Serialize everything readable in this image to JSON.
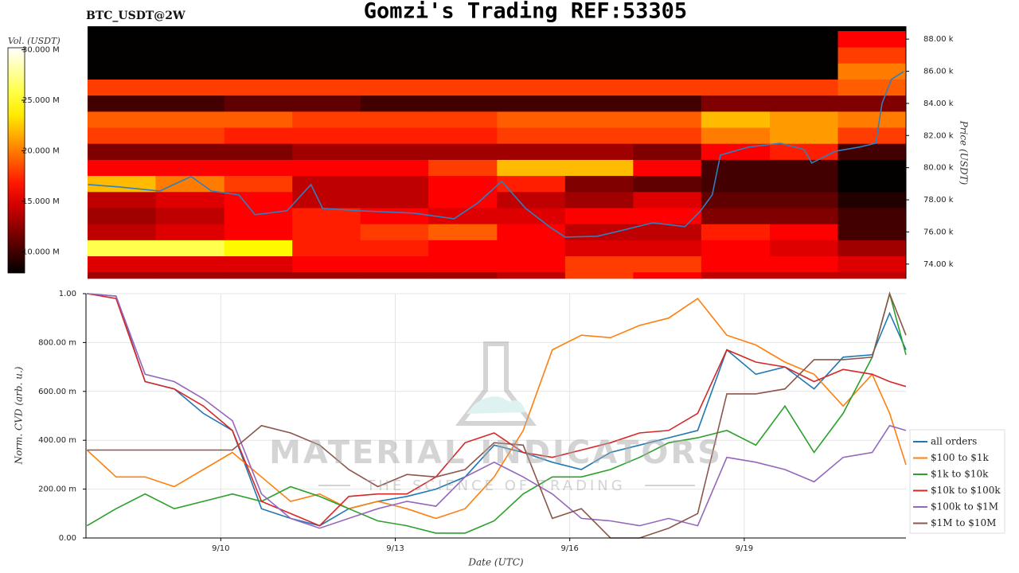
{
  "chart_data": [
    {
      "type": "heatmap",
      "title": "Gomzi's Trading REF:53305",
      "subtitle": "BTC_USDT@2W",
      "y_label": "Price (USDT)",
      "colorbar_label": "Vol. (USDT)",
      "colormap": "hot",
      "xlim": [
        7.71,
        21.78
      ],
      "ylim": [
        73.1,
        88.8
      ],
      "yticks": [
        {
          "value": 74,
          "label": "74.00 k"
        },
        {
          "value": 76,
          "label": "76.00 k"
        },
        {
          "value": 78,
          "label": "78.00 k"
        },
        {
          "value": 80,
          "label": "80.00 k"
        },
        {
          "value": 82,
          "label": "82.00 k"
        },
        {
          "value": 84,
          "label": "84.00 k"
        },
        {
          "value": 86,
          "label": "86.00 k"
        },
        {
          "value": 88,
          "label": "88.00 k"
        }
      ],
      "vlim": [
        7.9,
        30.2
      ],
      "vticks": [
        {
          "value": 10,
          "label": "10.000 M"
        },
        {
          "value": 15,
          "label": "15.000 M"
        },
        {
          "value": 20,
          "label": "20.000 M"
        },
        {
          "value": 25,
          "label": "25.000 M"
        },
        {
          "value": 30,
          "label": "30.000 M"
        }
      ],
      "time_bins": [
        7.71,
        8.88,
        10.06,
        11.23,
        12.4,
        13.57,
        14.75,
        15.92,
        17.09,
        18.26,
        19.44,
        20.61,
        21.78
      ],
      "price_bins": [
        72.5,
        73.5,
        74.5,
        75.5,
        76.5,
        77.5,
        78.5,
        79.5,
        80.5,
        81.5,
        82.5,
        83.5,
        84.5,
        85.5,
        86.5,
        87.5,
        88.5
      ],
      "z": [
        [
          13,
          13,
          13,
          13,
          13,
          13,
          14,
          18,
          16,
          14,
          14,
          14
        ],
        [
          15,
          15,
          15,
          16,
          16,
          16,
          16,
          18,
          18,
          16,
          16,
          15
        ],
        [
          26,
          26,
          24,
          17,
          17,
          16,
          16,
          15,
          15,
          16,
          15,
          13
        ],
        [
          14,
          15,
          16,
          17,
          18,
          19,
          16,
          14,
          14,
          17,
          16,
          10
        ],
        [
          13,
          14,
          16,
          17,
          16,
          15,
          15,
          16,
          16,
          12,
          12,
          10
        ],
        [
          14,
          15,
          16,
          14,
          14,
          16,
          14,
          13,
          15,
          11,
          11,
          9
        ],
        [
          22,
          20,
          18,
          14,
          14,
          16,
          17,
          12,
          11,
          10,
          10,
          8
        ],
        [
          16,
          16,
          16,
          16,
          16,
          18,
          22,
          22,
          16,
          10,
          10,
          8
        ],
        [
          12,
          12,
          12,
          13,
          13,
          13,
          13,
          13,
          12,
          16,
          17,
          10
        ],
        [
          18,
          18,
          17,
          17,
          17,
          17,
          18,
          18,
          18,
          20,
          21,
          18
        ],
        [
          19,
          19,
          19,
          18,
          18,
          18,
          19,
          19,
          19,
          22,
          21,
          20
        ],
        [
          10,
          10,
          11,
          11,
          10,
          10,
          10,
          10,
          10,
          12,
          12,
          12
        ],
        [
          18,
          18,
          18,
          18,
          18,
          18,
          18,
          18,
          18,
          18,
          18,
          19
        ],
        [
          8,
          8,
          8,
          8,
          8,
          8,
          8,
          8,
          8,
          8,
          8,
          20
        ],
        [
          8,
          8,
          8,
          8,
          8,
          8,
          8,
          8,
          8,
          8,
          8,
          18
        ],
        [
          8,
          8,
          8,
          8,
          8,
          8,
          8,
          8,
          8,
          8,
          8,
          16
        ]
      ],
      "line_color": "#2f7fc1",
      "x": [
        7.72,
        8.26,
        8.95,
        9.49,
        9.84,
        10.31,
        10.59,
        11.14,
        11.55,
        11.75,
        12.37,
        13.32,
        14.01,
        14.42,
        14.83,
        15.24,
        15.65,
        15.92,
        16.47,
        16.88,
        17.43,
        17.98,
        18.25,
        18.45,
        18.59,
        19.07,
        19.62,
        20.03,
        20.16,
        20.57,
        20.98,
        21.26,
        21.37,
        21.53,
        21.74
      ],
      "values": [
        78.95,
        78.8,
        78.55,
        79.45,
        78.55,
        78.31,
        77.07,
        77.32,
        78.95,
        77.47,
        77.32,
        77.17,
        76.82,
        77.81,
        79.15,
        77.47,
        76.33,
        75.68,
        75.73,
        76.08,
        76.57,
        76.33,
        77.32,
        78.31,
        80.78,
        81.28,
        81.52,
        81.13,
        80.29,
        81.03,
        81.28,
        81.52,
        84.0,
        85.49,
        85.98
      ]
    },
    {
      "type": "line",
      "x_label": "Date (UTC)",
      "y_label": "Norm. CVD (arb. u.)",
      "watermark": "MATERIAL INDICATORS",
      "watermark_tagline": "THE SCIENCE OF TRADING",
      "grid": true,
      "legend": "right",
      "xlim": [
        7.71,
        21.78
      ],
      "xticks": [
        {
          "value": 10,
          "label": "9/10"
        },
        {
          "value": 13,
          "label": "9/13"
        },
        {
          "value": 16,
          "label": "9/16"
        },
        {
          "value": 19,
          "label": "9/19"
        }
      ],
      "ylim": [
        0,
        1
      ],
      "yticks": [
        {
          "value": 0,
          "label": "0.00"
        },
        {
          "value": 0.2,
          "label": "200.00 m"
        },
        {
          "value": 0.4,
          "label": "400.00 m"
        },
        {
          "value": 0.6,
          "label": "600.00 m"
        },
        {
          "value": 0.8,
          "label": "800.00 m"
        },
        {
          "value": 1,
          "label": "1.00"
        }
      ],
      "x": [
        7.7,
        8.2,
        8.7,
        9.2,
        9.7,
        10.2,
        10.7,
        11.2,
        11.7,
        12.2,
        12.7,
        13.2,
        13.7,
        14.2,
        14.7,
        15.2,
        15.7,
        16.2,
        16.7,
        17.2,
        17.7,
        18.2,
        18.7,
        19.2,
        19.7,
        20.2,
        20.7,
        21.2,
        21.5,
        21.78
      ],
      "series": [
        {
          "name": "all orders",
          "color": "#1f77b4",
          "values": [
            1.0,
            0.99,
            0.64,
            0.61,
            0.51,
            0.44,
            0.12,
            0.08,
            0.05,
            0.12,
            0.15,
            0.17,
            0.2,
            0.25,
            0.38,
            0.35,
            0.31,
            0.28,
            0.35,
            0.38,
            0.41,
            0.44,
            0.77,
            0.67,
            0.7,
            0.61,
            0.74,
            0.75,
            0.92,
            0.77
          ]
        },
        {
          "name": "$100 to $1k",
          "color": "#ff7f0e",
          "values": [
            0.36,
            0.25,
            0.25,
            0.21,
            0.28,
            0.35,
            0.25,
            0.15,
            0.18,
            0.12,
            0.15,
            0.12,
            0.08,
            0.12,
            0.25,
            0.44,
            0.77,
            0.83,
            0.82,
            0.87,
            0.9,
            0.98,
            0.83,
            0.79,
            0.72,
            0.67,
            0.54,
            0.67,
            0.51,
            0.3
          ]
        },
        {
          "name": "$1k to $10k",
          "color": "#2ca02c",
          "values": [
            0.05,
            0.12,
            0.18,
            0.12,
            0.15,
            0.18,
            0.15,
            0.21,
            0.17,
            0.12,
            0.07,
            0.05,
            0.02,
            0.02,
            0.07,
            0.18,
            0.25,
            0.25,
            0.28,
            0.33,
            0.39,
            0.41,
            0.44,
            0.38,
            0.54,
            0.35,
            0.51,
            0.74,
            1.0,
            0.75
          ]
        },
        {
          "name": "$10k to $100k",
          "color": "#d62728",
          "values": [
            1.0,
            0.98,
            0.64,
            0.61,
            0.54,
            0.44,
            0.15,
            0.1,
            0.05,
            0.17,
            0.18,
            0.18,
            0.25,
            0.39,
            0.43,
            0.35,
            0.33,
            0.36,
            0.39,
            0.43,
            0.44,
            0.51,
            0.77,
            0.72,
            0.7,
            0.64,
            0.69,
            0.67,
            0.64,
            0.62
          ]
        },
        {
          "name": "$100k to $1M",
          "color": "#9467bd",
          "values": [
            1.0,
            0.99,
            0.67,
            0.64,
            0.57,
            0.48,
            0.18,
            0.08,
            0.04,
            0.08,
            0.12,
            0.15,
            0.13,
            0.25,
            0.31,
            0.25,
            0.18,
            0.08,
            0.07,
            0.05,
            0.08,
            0.05,
            0.33,
            0.31,
            0.28,
            0.23,
            0.33,
            0.35,
            0.46,
            0.44
          ]
        },
        {
          "name": "$1M to $10M",
          "color": "#8c564b",
          "values": [
            0.36,
            0.36,
            0.36,
            0.36,
            0.36,
            0.36,
            0.46,
            0.43,
            0.38,
            0.28,
            0.21,
            0.26,
            0.25,
            0.28,
            0.39,
            0.38,
            0.08,
            0.12,
            0,
            0,
            0.04,
            0.1,
            0.59,
            0.59,
            0.61,
            0.73,
            0.73,
            0.74,
            1.0,
            0.83
          ]
        }
      ]
    }
  ]
}
